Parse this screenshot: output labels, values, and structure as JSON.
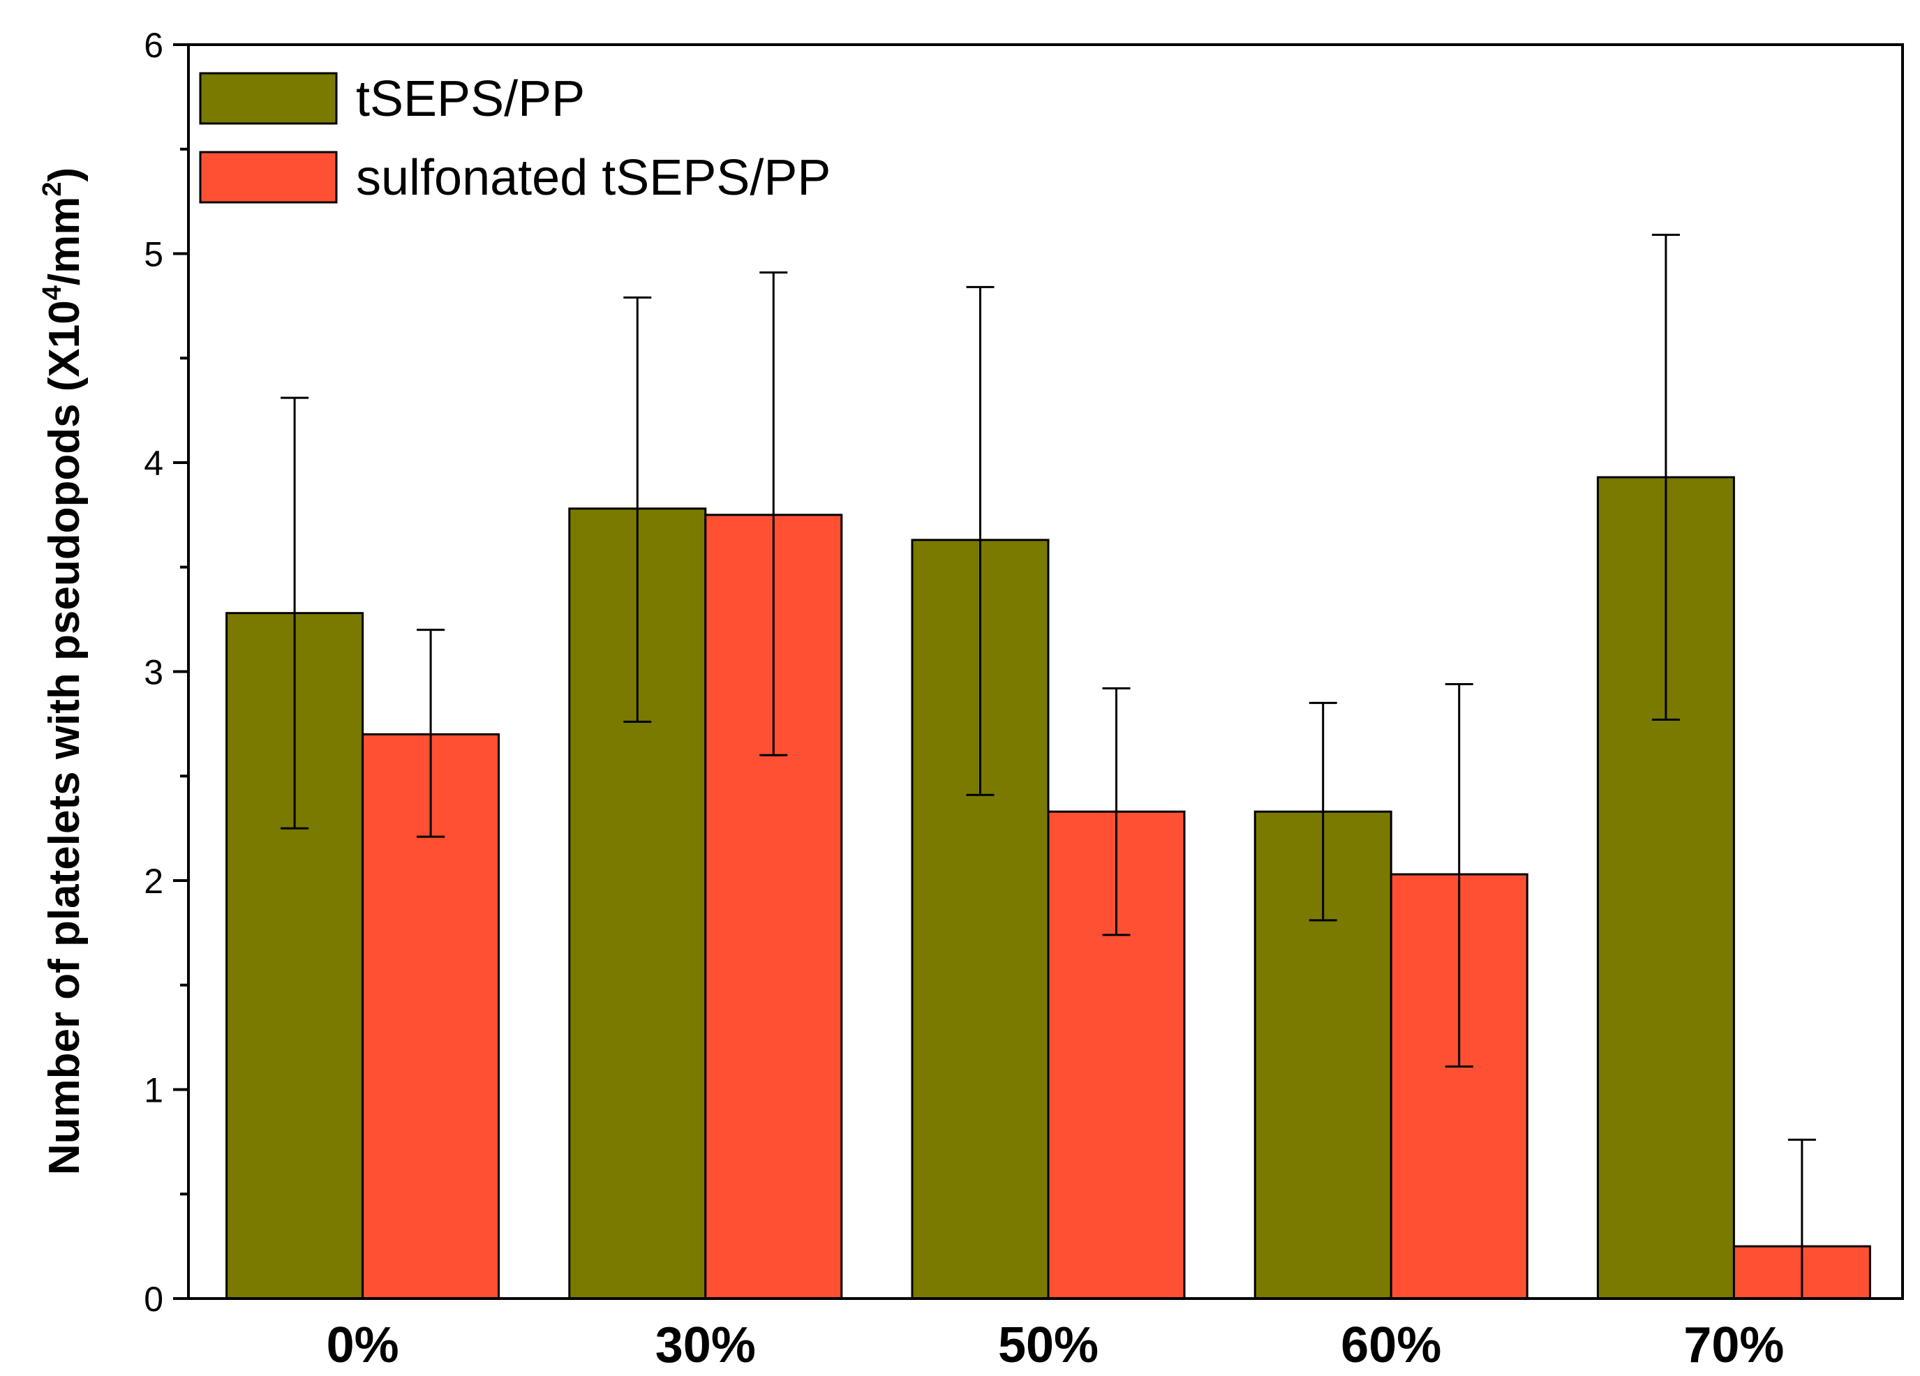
{
  "chart_data": {
    "type": "bar",
    "title": "",
    "xlabel": "",
    "ylabel": {
      "main": "Number of platelets with pseudopods (X10",
      "exp1": "4",
      "mid": "/mm",
      "exp2": "2",
      "end": ")"
    },
    "ylim": [
      0,
      6
    ],
    "yticks": [
      "0",
      "1",
      "2",
      "3",
      "4",
      "5",
      "6"
    ],
    "categories": [
      "0%",
      "30%",
      "50%",
      "60%",
      "70%"
    ],
    "series": [
      {
        "name": "tSEPS/PP",
        "color": "#7a7a00",
        "values": [
          3.28,
          3.78,
          3.63,
          2.33,
          3.93
        ],
        "err_low": [
          2.25,
          2.76,
          2.41,
          1.81,
          2.77
        ],
        "err_high": [
          4.31,
          4.79,
          4.84,
          2.85,
          5.09
        ]
      },
      {
        "name": "sulfonated tSEPS/PP",
        "color": "#ff5033",
        "values": [
          2.7,
          3.75,
          2.33,
          2.03,
          0.25
        ],
        "err_low": [
          2.21,
          2.6,
          1.74,
          1.11,
          0.0
        ],
        "err_high": [
          3.2,
          4.91,
          2.92,
          2.94,
          0.76
        ]
      }
    ],
    "legend": "top-left",
    "grid": false
  }
}
